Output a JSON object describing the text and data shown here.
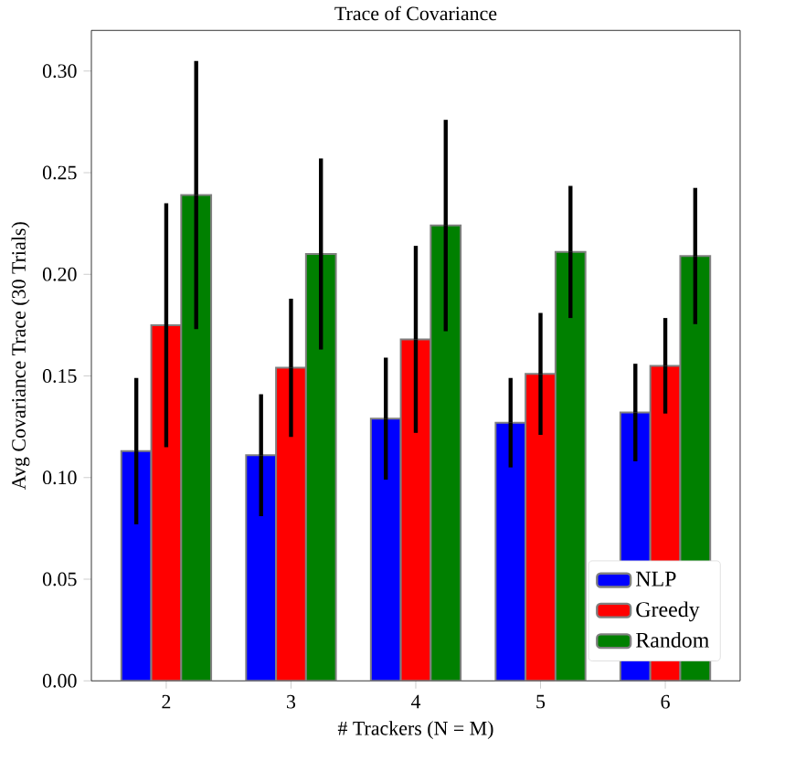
{
  "chart_data": {
    "type": "bar",
    "title": "Trace of Covariance",
    "xlabel": "# Trackers (N = M)",
    "ylabel": "Avg Covariance Trace (30 Trials)",
    "categories": [
      "2",
      "3",
      "4",
      "5",
      "6"
    ],
    "series": [
      {
        "name": "NLP",
        "color": "#0000ff",
        "values": [
          0.113,
          0.111,
          0.129,
          0.127,
          0.132
        ],
        "errors": [
          0.036,
          0.03,
          0.03,
          0.022,
          0.024
        ]
      },
      {
        "name": "Greedy",
        "color": "#ff0000",
        "values": [
          0.175,
          0.154,
          0.168,
          0.151,
          0.155
        ],
        "errors": [
          0.06,
          0.034,
          0.046,
          0.03,
          0.0235
        ]
      },
      {
        "name": "Random",
        "color": "#008000",
        "values": [
          0.239,
          0.21,
          0.224,
          0.211,
          0.209
        ],
        "errors": [
          0.066,
          0.047,
          0.052,
          0.0325,
          0.0335
        ]
      }
    ],
    "ylim": [
      0,
      0.32
    ],
    "yticks": [
      {
        "value": 0,
        "label": "0.00"
      },
      {
        "value": 0.05,
        "label": "0.05"
      },
      {
        "value": 0.1,
        "label": "0.10"
      },
      {
        "value": 0.15,
        "label": "0.15"
      },
      {
        "value": 0.2,
        "label": "0.20"
      },
      {
        "value": 0.25,
        "label": "0.25"
      },
      {
        "value": 0.3,
        "label": "0.30"
      }
    ],
    "grid": false,
    "legend": "bottom right"
  }
}
